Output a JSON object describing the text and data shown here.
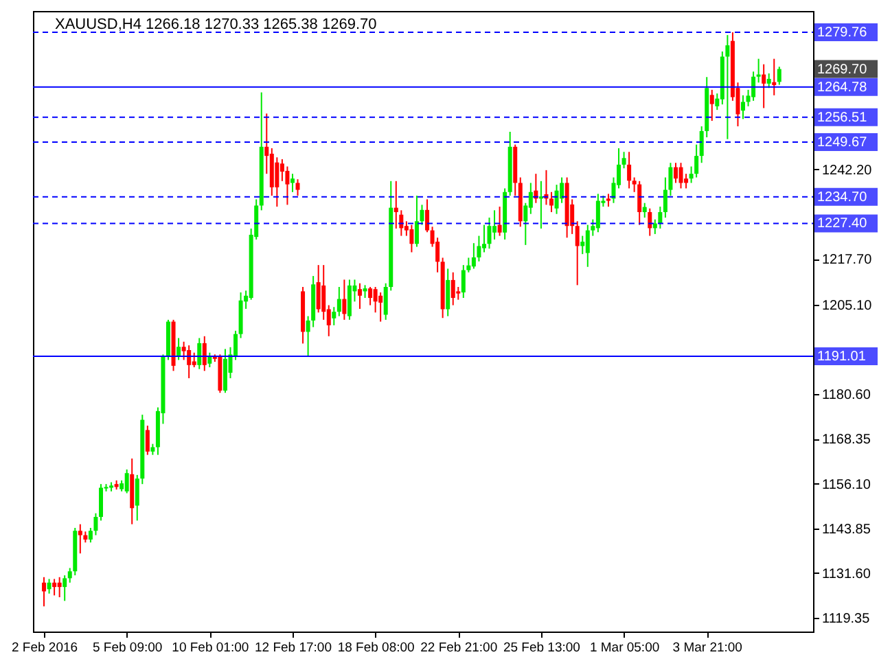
{
  "chart_data": {
    "type": "candlestick",
    "title": "XAUUSD,H4  1266.18 1270.33 1265.38 1269.70",
    "categories": [
      "2 Feb 2016",
      null,
      null,
      null,
      null,
      null,
      null,
      null,
      null,
      null,
      null,
      null,
      null,
      null,
      null,
      null,
      "5 Feb 09:00",
      null,
      null,
      null,
      null,
      null,
      null,
      null,
      null,
      null,
      null,
      null,
      null,
      null,
      null,
      null,
      "10 Feb 01:00",
      null,
      null,
      null,
      null,
      null,
      null,
      null,
      null,
      null,
      null,
      null,
      null,
      null,
      null,
      null,
      "12 Feb 17:00",
      null,
      null,
      null,
      null,
      null,
      null,
      null,
      null,
      null,
      null,
      null,
      null,
      null,
      null,
      null,
      "18 Feb 08:00",
      null,
      null,
      null,
      null,
      null,
      null,
      null,
      null,
      null,
      null,
      null,
      null,
      null,
      null,
      null,
      "22 Feb 21:00",
      null,
      null,
      null,
      null,
      null,
      null,
      null,
      null,
      null,
      null,
      null,
      null,
      null,
      null,
      null,
      "25 Feb 13:00",
      null,
      null,
      null,
      null,
      null,
      null,
      null,
      null,
      null,
      null,
      null,
      null,
      null,
      null,
      null,
      "1 Mar 05:00",
      null,
      null,
      null,
      null,
      null,
      null,
      null,
      null,
      null,
      null,
      null,
      null,
      null,
      null,
      null,
      "3 Mar 21:00",
      null,
      null,
      null,
      null,
      null,
      null,
      null,
      null,
      null,
      null,
      null,
      null,
      null,
      null
    ],
    "ohlc": [
      [
        1129.0,
        1130.5,
        1122.5,
        1126.6
      ],
      [
        1127.2,
        1130,
        1126,
        1129.0
      ],
      [
        1129.0,
        1130,
        1125.5,
        1127.8
      ],
      [
        1129.0,
        1130.5,
        1125,
        1127.8
      ],
      [
        1127.8,
        1131,
        1124,
        1130.2
      ],
      [
        1130.2,
        1133,
        1129,
        1132.1
      ],
      [
        1132.1,
        1144,
        1131,
        1143.2
      ],
      [
        1143.2,
        1145,
        1137,
        1142.0
      ],
      [
        1142.0,
        1143,
        1140,
        1140.8
      ],
      [
        1140.8,
        1144,
        1140,
        1143.2
      ],
      [
        1143.2,
        1148,
        1142,
        1147.0
      ],
      [
        1147.0,
        1156,
        1146,
        1155.0
      ],
      [
        1154.8,
        1156,
        1154,
        1155.2
      ],
      [
        1155.0,
        1156.5,
        1154,
        1155.6
      ],
      [
        1156.0,
        1157,
        1154.5,
        1155.2
      ],
      [
        1154.6,
        1157,
        1154,
        1156.2
      ],
      [
        1154.0,
        1160,
        1153.5,
        1159.0
      ],
      [
        1158.7,
        1163,
        1145,
        1149.4
      ],
      [
        1150.1,
        1158.5,
        1146,
        1157.5
      ],
      [
        1157.5,
        1175,
        1156,
        1173.6
      ],
      [
        1170.8,
        1172,
        1164,
        1164.9
      ],
      [
        1164.9,
        1167,
        1164,
        1166.1
      ],
      [
        1166.1,
        1177,
        1164,
        1176.0
      ],
      [
        1175.4,
        1191.5,
        1172.5,
        1190.9
      ],
      [
        1190.9,
        1201,
        1190,
        1200.5
      ],
      [
        1200.5,
        1201,
        1187,
        1188.4
      ],
      [
        1190.9,
        1196,
        1190,
        1193.6
      ],
      [
        1193.6,
        1195,
        1190,
        1192.4
      ],
      [
        1192.7,
        1194,
        1185,
        1188.6
      ],
      [
        1189.6,
        1192,
        1188,
        1188.6
      ],
      [
        1188.6,
        1196,
        1187.5,
        1194.6
      ],
      [
        1194.6,
        1196.5,
        1187,
        1188.6
      ],
      [
        1189.0,
        1192,
        1188,
        1190.9
      ],
      [
        1190.9,
        1191.5,
        1189.5,
        1190.3
      ],
      [
        1190.9,
        1191.5,
        1181,
        1181.6
      ],
      [
        1181.6,
        1193,
        1181,
        1190.3
      ],
      [
        1186.5,
        1193.5,
        1185,
        1191.5
      ],
      [
        1190.9,
        1198,
        1190,
        1197.1
      ],
      [
        1197.1,
        1208.5,
        1196,
        1206.3
      ],
      [
        1206.0,
        1209,
        1204,
        1207.6
      ],
      [
        1207.0,
        1226,
        1206.5,
        1224.3
      ],
      [
        1223.7,
        1234,
        1223,
        1232.3
      ],
      [
        1232.3,
        1263.3,
        1231,
        1248.4
      ],
      [
        1248.4,
        1257.5,
        1241,
        1245.9
      ],
      [
        1246.5,
        1248,
        1235,
        1237.3
      ],
      [
        1244.1,
        1245.5,
        1232,
        1237.3
      ],
      [
        1243.8,
        1245,
        1239,
        1241.6
      ],
      [
        1241.8,
        1243,
        1232.5,
        1238.1
      ],
      [
        1238.5,
        1241,
        1236,
        1239.7
      ],
      [
        1238.5,
        1239.5,
        1235,
        1236.6
      ],
      [
        1208.8,
        1210,
        1194.5,
        1197.7
      ],
      [
        1197.7,
        1202,
        1191,
        1200.8
      ],
      [
        1200.8,
        1213,
        1199,
        1210.7
      ],
      [
        1211.3,
        1216,
        1203,
        1203.9
      ],
      [
        1210.4,
        1216,
        1201,
        1203.2
      ],
      [
        1203.9,
        1205,
        1196.5,
        1199.5
      ],
      [
        1201.4,
        1204.5,
        1199.5,
        1203.2
      ],
      [
        1203.2,
        1210,
        1202,
        1206.7
      ],
      [
        1206.7,
        1212,
        1201,
        1202.6
      ],
      [
        1202.0,
        1212,
        1201,
        1210.4
      ],
      [
        1208.8,
        1212,
        1206,
        1210.4
      ],
      [
        1209.4,
        1211,
        1204,
        1207.6
      ],
      [
        1208.8,
        1210.5,
        1207,
        1209.6
      ],
      [
        1209.6,
        1210,
        1205,
        1207.0
      ],
      [
        1209.4,
        1210,
        1203,
        1206.0
      ],
      [
        1207.6,
        1208.5,
        1200.5,
        1205.7
      ],
      [
        1202.4,
        1211,
        1201,
        1210.0
      ],
      [
        1210.0,
        1239,
        1209,
        1231.7
      ],
      [
        1231.7,
        1239,
        1226,
        1230.5
      ],
      [
        1229.8,
        1231,
        1224,
        1226.1
      ],
      [
        1226.7,
        1228,
        1224,
        1225.5
      ],
      [
        1225.8,
        1227,
        1219.5,
        1221.8
      ],
      [
        1221.8,
        1235,
        1221,
        1228.0
      ],
      [
        1228.0,
        1232.5,
        1227,
        1231.1
      ],
      [
        1231.1,
        1234,
        1225,
        1225.5
      ],
      [
        1225.5,
        1226.5,
        1221,
        1221.8
      ],
      [
        1222.4,
        1223.5,
        1214,
        1216.9
      ],
      [
        1216.9,
        1218,
        1201.5,
        1203.9
      ],
      [
        1203.9,
        1215,
        1202,
        1211.9
      ],
      [
        1211.9,
        1214,
        1205,
        1207.0
      ],
      [
        1208.8,
        1210,
        1206.5,
        1208.2
      ],
      [
        1208.5,
        1216,
        1207,
        1214.6
      ],
      [
        1214.6,
        1218,
        1214,
        1215.9
      ],
      [
        1215.6,
        1222,
        1215,
        1218.1
      ],
      [
        1218.1,
        1224,
        1217,
        1221.2
      ],
      [
        1220.6,
        1227,
        1219.5,
        1221.8
      ],
      [
        1221.8,
        1229,
        1220.5,
        1226.7
      ],
      [
        1224.9,
        1231,
        1223,
        1226.7
      ],
      [
        1227.0,
        1232,
        1224,
        1224.9
      ],
      [
        1224.9,
        1237,
        1223,
        1236.0
      ],
      [
        1236.0,
        1252.5,
        1235,
        1248.4
      ],
      [
        1248.4,
        1249,
        1235,
        1238.5
      ],
      [
        1238.5,
        1240,
        1226.5,
        1228.0
      ],
      [
        1228.0,
        1233,
        1221.5,
        1232.3
      ],
      [
        1231.7,
        1238.5,
        1230,
        1236.0
      ],
      [
        1236.4,
        1241,
        1233,
        1234.2
      ],
      [
        1234.2,
        1239,
        1226,
        1234.8
      ],
      [
        1235.4,
        1242,
        1232.5,
        1234.2
      ],
      [
        1234.2,
        1236,
        1230.5,
        1232.3
      ],
      [
        1231.5,
        1238,
        1230,
        1236.4
      ],
      [
        1234.2,
        1240,
        1233,
        1238.5
      ],
      [
        1238.5,
        1240,
        1223.5,
        1226.7
      ],
      [
        1232.6,
        1234,
        1224.5,
        1226.7
      ],
      [
        1226.7,
        1228,
        1210.5,
        1221.2
      ],
      [
        1221.2,
        1224,
        1219,
        1222.4
      ],
      [
        1219.3,
        1227,
        1215.5,
        1225.5
      ],
      [
        1225.5,
        1228.5,
        1224,
        1226.7
      ],
      [
        1226.1,
        1235.5,
        1225,
        1233.6
      ],
      [
        1233.0,
        1235,
        1232,
        1233.6
      ],
      [
        1234.2,
        1235.5,
        1232,
        1233.6
      ],
      [
        1234.2,
        1240,
        1233,
        1238.5
      ],
      [
        1237.9,
        1248,
        1237,
        1243.5
      ],
      [
        1243.5,
        1247,
        1242.5,
        1245.3
      ],
      [
        1243.5,
        1247,
        1237,
        1239.1
      ],
      [
        1239.1,
        1240,
        1236,
        1238.1
      ],
      [
        1238.1,
        1239,
        1227,
        1230.5
      ],
      [
        1230.5,
        1233,
        1229,
        1231.9
      ],
      [
        1230.5,
        1231.5,
        1224,
        1226.1
      ],
      [
        1226.1,
        1228.5,
        1224.5,
        1227.4
      ],
      [
        1227.4,
        1232,
        1226,
        1230.5
      ],
      [
        1230.5,
        1240,
        1229,
        1236.6
      ],
      [
        1236.6,
        1244,
        1235,
        1242.8
      ],
      [
        1242.8,
        1244,
        1238.5,
        1239.7
      ],
      [
        1242.8,
        1244,
        1237,
        1238.5
      ],
      [
        1239.7,
        1241,
        1237,
        1238.5
      ],
      [
        1239.7,
        1243,
        1238.5,
        1241.0
      ],
      [
        1241.0,
        1249,
        1240,
        1245.9
      ],
      [
        1245.9,
        1254,
        1244,
        1252.7
      ],
      [
        1252.7,
        1267.5,
        1251,
        1264.5
      ],
      [
        1262.6,
        1264,
        1255.5,
        1260.1
      ],
      [
        1259.5,
        1263,
        1258.5,
        1261.6
      ],
      [
        1261.4,
        1274.5,
        1260,
        1273.1
      ],
      [
        1273.1,
        1279,
        1250.5,
        1276.2
      ],
      [
        1277.4,
        1279.76,
        1261,
        1262.0
      ],
      [
        1264.5,
        1266,
        1254,
        1257.3
      ],
      [
        1258.3,
        1262.5,
        1256,
        1260.7
      ],
      [
        1260.7,
        1264,
        1259.5,
        1262.4
      ],
      [
        1262.0,
        1269,
        1261,
        1267.6
      ],
      [
        1267.6,
        1272.5,
        1266,
        1268.2
      ],
      [
        1268.2,
        1271,
        1259,
        1265.7
      ],
      [
        1265.7,
        1268.5,
        1264.5,
        1267.0
      ],
      [
        1266.1,
        1272.5,
        1262.5,
        1265.3
      ],
      [
        1266.18,
        1270.33,
        1265.38,
        1269.7
      ]
    ],
    "colors": [
      "#ff0000",
      "#00e800",
      "#ff0000",
      "#ff0000",
      "#00e800",
      "#00e800",
      "#00e800",
      "#ff0000",
      "#ff0000",
      "#00e800",
      "#00e800",
      "#00e800",
      "#00e800",
      "#00e800",
      "#ff0000",
      "#00e800",
      "#00e800",
      "#ff0000",
      "#00e800",
      "#00e800",
      "#ff0000",
      "#00e800",
      "#00e800",
      "#00e800",
      "#00e800",
      "#ff0000",
      "#00e800",
      "#ff0000",
      "#ff0000",
      "#ff0000",
      "#00e800",
      "#ff0000",
      "#00e800",
      "#ff0000",
      "#ff0000",
      "#00e800",
      "#00e800",
      "#00e800",
      "#00e800",
      "#00e800",
      "#00e800",
      "#00e800",
      "#00e800",
      "#ff0000",
      "#ff0000",
      "#ff0000",
      "#ff0000",
      "#ff0000",
      "#00e800",
      "#ff0000",
      "#ff0000",
      "#00e800",
      "#00e800",
      "#ff0000",
      "#ff0000",
      "#ff0000",
      "#00e800",
      "#00e800",
      "#ff0000",
      "#00e800",
      "#00e800",
      "#ff0000",
      "#00e800",
      "#ff0000",
      "#ff0000",
      "#ff0000",
      "#00e800",
      "#00e800",
      "#ff0000",
      "#ff0000",
      "#ff0000",
      "#ff0000",
      "#00e800",
      "#00e800",
      "#ff0000",
      "#ff0000",
      "#ff0000",
      "#ff0000",
      "#00e800",
      "#ff0000",
      "#ff0000",
      "#00e800",
      "#00e800",
      "#00e800",
      "#00e800",
      "#00e800",
      "#00e800",
      "#00e800",
      "#ff0000",
      "#00e800",
      "#00e800",
      "#ff0000",
      "#ff0000",
      "#00e800",
      "#00e800",
      "#ff0000",
      "#00e800",
      "#ff0000",
      "#ff0000",
      "#00e800",
      "#00e800",
      "#ff0000",
      "#ff0000",
      "#ff0000",
      "#00e800",
      "#00e800",
      "#00e800",
      "#00e800",
      "#00e800",
      "#ff0000",
      "#00e800",
      "#00e800",
      "#00e800",
      "#ff0000",
      "#ff0000",
      "#ff0000",
      "#00e800",
      "#ff0000",
      "#00e800",
      "#00e800",
      "#00e800",
      "#00e800",
      "#ff0000",
      "#ff0000",
      "#ff0000",
      "#00e800",
      "#00e800",
      "#00e800",
      "#00e800",
      "#ff0000",
      "#00e800",
      "#00e800",
      "#00e800",
      "#ff0000",
      "#ff0000",
      "#00e800",
      "#00e800",
      "#00e800",
      "#00e800",
      "#ff0000",
      "#00e800",
      "#ff0000",
      "#00e800"
    ],
    "ylim": [
      1115.6,
      1285.6
    ],
    "yticks": [
      {
        "value": 1119.35,
        "label": "1119.35"
      },
      {
        "value": 1131.6,
        "label": "1131.60"
      },
      {
        "value": 1143.85,
        "label": "1143.85"
      },
      {
        "value": 1156.1,
        "label": "1156.10"
      },
      {
        "value": 1168.35,
        "label": "1168.35"
      },
      {
        "value": 1180.6,
        "label": "1180.60"
      },
      {
        "value": 1205.1,
        "label": "1205.10"
      },
      {
        "value": 1217.7,
        "label": "1217.70"
      },
      {
        "value": 1242.2,
        "label": "1242.20"
      }
    ],
    "ref_lines": [
      {
        "axis": "y",
        "value": 1279.76,
        "label": "1279.76",
        "color": "#0000ff",
        "line_style": "dashed"
      },
      {
        "axis": "y",
        "value": 1264.78,
        "label": "1264.78",
        "color": "#0000ff",
        "line_style": "solid"
      },
      {
        "axis": "y",
        "value": 1256.51,
        "label": "1256.51",
        "color": "#0000ff",
        "line_style": "dashed"
      },
      {
        "axis": "y",
        "value": 1249.67,
        "label": "1249.67",
        "color": "#0000ff",
        "line_style": "dashed"
      },
      {
        "axis": "y",
        "value": 1234.7,
        "label": "1234.70",
        "color": "#0000ff",
        "line_style": "dashed"
      },
      {
        "axis": "y",
        "value": 1227.4,
        "label": "1227.40",
        "color": "#0000ff",
        "line_style": "dashed"
      },
      {
        "axis": "y",
        "value": 1191.01,
        "label": "1191.01",
        "color": "#0000ff",
        "line_style": "solid"
      }
    ],
    "annotations": [
      "1269.70"
    ]
  }
}
